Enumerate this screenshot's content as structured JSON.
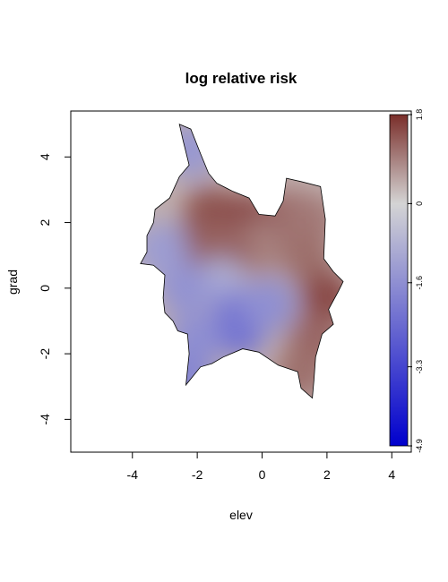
{
  "chart_data": {
    "type": "heatmap",
    "title": "log relative risk",
    "xlabel": "elev",
    "ylabel": "grad",
    "xlim": [
      -5.9,
      4.6
    ],
    "ylim": [
      -5.0,
      5.4
    ],
    "x_ticks": [
      -4,
      -2,
      0,
      2,
      4
    ],
    "x_tick_labels": [
      "-4",
      "-2",
      "0",
      "2",
      "4"
    ],
    "y_ticks": [
      -4,
      -2,
      0,
      2,
      4
    ],
    "y_tick_labels": [
      "-4",
      "-2",
      "0",
      "2",
      "4"
    ],
    "grid": false,
    "colorbar": {
      "placement": "right",
      "range": [
        -4.9,
        1.8
      ],
      "ticks": [
        1.8,
        0,
        -1.6,
        -3.3,
        -4.9
      ],
      "tick_labels": [
        "1.8",
        "0",
        "-1.6",
        "-3.3",
        "-4.9"
      ],
      "colors": {
        "low": "#0000cd",
        "mid": "#d4d4d4",
        "high": "#7a2e2a"
      }
    },
    "region_outline": [
      [
        -2.55,
        5.0
      ],
      [
        -2.2,
        4.85
      ],
      [
        -1.9,
        4.1
      ],
      [
        -1.65,
        3.5
      ],
      [
        -1.4,
        3.2
      ],
      [
        -0.9,
        2.95
      ],
      [
        -0.4,
        2.75
      ],
      [
        -0.1,
        2.25
      ],
      [
        0.4,
        2.2
      ],
      [
        0.65,
        2.65
      ],
      [
        0.75,
        3.35
      ],
      [
        1.2,
        3.25
      ],
      [
        1.8,
        3.1
      ],
      [
        1.95,
        2.1
      ],
      [
        1.9,
        0.9
      ],
      [
        2.2,
        0.5
      ],
      [
        2.5,
        0.2
      ],
      [
        2.35,
        -0.1
      ],
      [
        2.05,
        -0.65
      ],
      [
        2.2,
        -1.1
      ],
      [
        1.85,
        -1.4
      ],
      [
        1.65,
        -2.1
      ],
      [
        1.6,
        -2.8
      ],
      [
        1.55,
        -3.35
      ],
      [
        1.2,
        -3.05
      ],
      [
        1.1,
        -2.55
      ],
      [
        0.5,
        -2.35
      ],
      [
        -0.1,
        -1.95
      ],
      [
        -0.6,
        -1.85
      ],
      [
        -1.2,
        -2.1
      ],
      [
        -1.55,
        -2.3
      ],
      [
        -1.9,
        -2.4
      ],
      [
        -2.35,
        -2.95
      ],
      [
        -2.25,
        -2.0
      ],
      [
        -2.3,
        -1.4
      ],
      [
        -2.6,
        -1.3
      ],
      [
        -2.75,
        -1.0
      ],
      [
        -3.0,
        -0.75
      ],
      [
        -3.05,
        -0.3
      ],
      [
        -3.0,
        0.4
      ],
      [
        -3.35,
        0.7
      ],
      [
        -3.75,
        0.75
      ],
      [
        -3.55,
        1.1
      ],
      [
        -3.55,
        1.6
      ],
      [
        -3.35,
        2.0
      ],
      [
        -3.3,
        2.4
      ],
      [
        -2.85,
        2.75
      ],
      [
        -2.55,
        3.4
      ],
      [
        -2.25,
        3.75
      ],
      [
        -2.45,
        4.55
      ]
    ],
    "surface_samples": [
      {
        "x": -1.6,
        "y": 2.3,
        "value": 1.4
      },
      {
        "x": -0.5,
        "y": 2.1,
        "value": 1.5
      },
      {
        "x": -2.0,
        "y": 1.3,
        "value": 1.3
      },
      {
        "x": 0.8,
        "y": 2.2,
        "value": 1.2
      },
      {
        "x": 1.5,
        "y": 2.1,
        "value": 1.0
      },
      {
        "x": 1.4,
        "y": 0.9,
        "value": 1.1
      },
      {
        "x": 2.0,
        "y": -0.3,
        "value": 1.5
      },
      {
        "x": 1.6,
        "y": -1.6,
        "value": 1.2
      },
      {
        "x": 1.2,
        "y": -2.6,
        "value": 1.1
      },
      {
        "x": -0.2,
        "y": 1.2,
        "value": 0.9
      },
      {
        "x": -1.1,
        "y": 1.2,
        "value": 1.2
      },
      {
        "x": -1.3,
        "y": 0.1,
        "value": -0.9
      },
      {
        "x": -0.8,
        "y": -0.8,
        "value": -1.9
      },
      {
        "x": -0.7,
        "y": -1.3,
        "value": -2.2
      },
      {
        "x": 0.2,
        "y": -0.5,
        "value": -1.6
      },
      {
        "x": -2.4,
        "y": 0.0,
        "value": -1.5
      },
      {
        "x": -2.1,
        "y": -1.6,
        "value": -1.6
      },
      {
        "x": -3.1,
        "y": 1.2,
        "value": -1.3
      },
      {
        "x": -2.2,
        "y": 4.2,
        "value": -1.4
      },
      {
        "x": -2.3,
        "y": -2.7,
        "value": -1.8
      }
    ]
  }
}
